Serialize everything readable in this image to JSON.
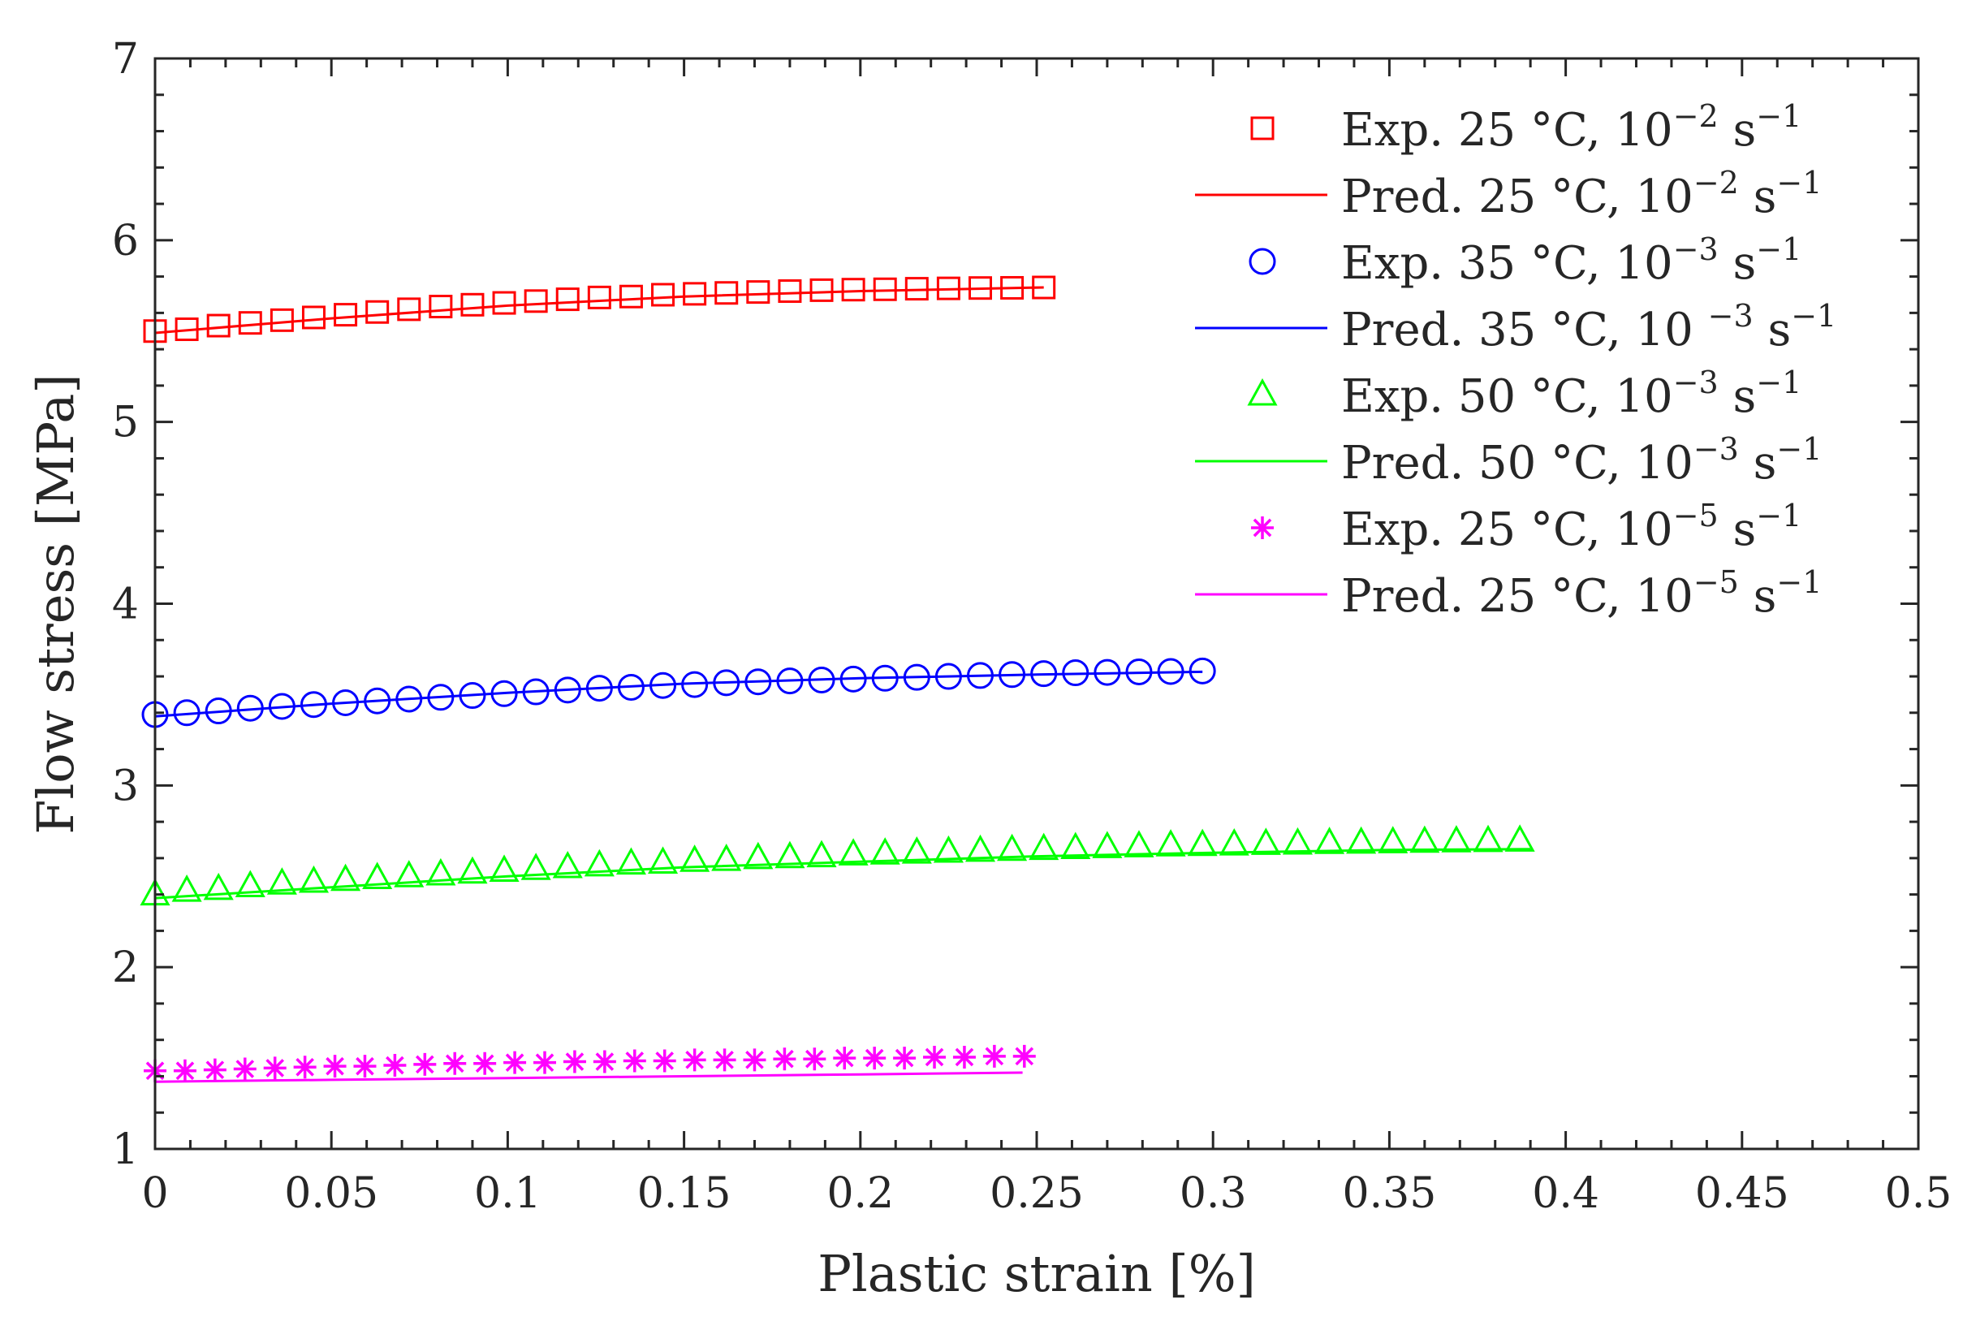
{
  "chart_data": {
    "type": "line",
    "title": "",
    "xlabel": "Plastic strain [%]",
    "ylabel": "Flow stress [MPa]",
    "xlim": [
      0,
      0.5
    ],
    "ylim": [
      1,
      7
    ],
    "grid": false,
    "legend_position": "top-right",
    "xticks": [
      0,
      0.05,
      0.1,
      0.15,
      0.2,
      0.25,
      0.3,
      0.35,
      0.4,
      0.45,
      0.5
    ],
    "xtick_labels": [
      "0",
      "0.05",
      "0.1",
      "0.15",
      "0.2",
      "0.25",
      "0.3",
      "0.35",
      "0.4",
      "0.45",
      "0.5"
    ],
    "yticks": [
      1,
      2,
      3,
      4,
      5,
      6,
      7
    ],
    "ytick_labels": [
      "1",
      "2",
      "3",
      "4",
      "5",
      "6",
      "7"
    ],
    "series": [
      {
        "name": "Exp. 25 °C, 10⁻² s⁻¹",
        "legend": {
          "prefix": "Exp.",
          "temp": "25 °C, 10",
          "exp": "−2",
          "unit": "s",
          "unit_exp": "−1"
        },
        "kind": "marker",
        "marker": "square",
        "color": "#ff0000",
        "x": [
          0,
          0.009,
          0.018,
          0.027,
          0.036,
          0.045,
          0.054,
          0.063,
          0.072,
          0.081,
          0.09,
          0.099,
          0.108,
          0.117,
          0.126,
          0.135,
          0.144,
          0.153,
          0.162,
          0.171,
          0.18,
          0.189,
          0.198,
          0.207,
          0.216,
          0.225,
          0.234,
          0.243,
          0.252
        ],
        "y": [
          5.5,
          5.51,
          5.53,
          5.545,
          5.56,
          5.575,
          5.59,
          5.605,
          5.62,
          5.635,
          5.645,
          5.655,
          5.665,
          5.675,
          5.685,
          5.69,
          5.7,
          5.705,
          5.71,
          5.715,
          5.72,
          5.725,
          5.728,
          5.73,
          5.733,
          5.735,
          5.737,
          5.738,
          5.74
        ]
      },
      {
        "name": "Pred. 25 °C, 10⁻² s⁻¹",
        "legend": {
          "prefix": "Pred.",
          "temp": "25 °C, 10",
          "exp": "−2",
          "unit": "s",
          "unit_exp": "−1"
        },
        "kind": "line",
        "color": "#ff0000",
        "x": [
          0,
          0.05,
          0.1,
          0.15,
          0.2,
          0.252
        ],
        "y": [
          5.49,
          5.57,
          5.64,
          5.69,
          5.72,
          5.74
        ]
      },
      {
        "name": "Exp. 35 °C, 10⁻³ s⁻¹",
        "legend": {
          "prefix": "Exp.",
          "temp": "35 °C, 10",
          "exp": "−3",
          "unit": "s",
          "unit_exp": "−1"
        },
        "kind": "marker",
        "marker": "circle",
        "color": "#0000ff",
        "x": [
          0,
          0.009,
          0.018,
          0.027,
          0.036,
          0.045,
          0.054,
          0.063,
          0.072,
          0.081,
          0.09,
          0.099,
          0.108,
          0.117,
          0.126,
          0.135,
          0.144,
          0.153,
          0.162,
          0.171,
          0.18,
          0.189,
          0.198,
          0.207,
          0.216,
          0.225,
          0.234,
          0.243,
          0.252,
          0.261,
          0.27,
          0.279,
          0.288,
          0.297
        ],
        "y": [
          3.39,
          3.4,
          3.41,
          3.425,
          3.435,
          3.445,
          3.455,
          3.465,
          3.475,
          3.485,
          3.495,
          3.505,
          3.515,
          3.525,
          3.535,
          3.54,
          3.55,
          3.555,
          3.565,
          3.57,
          3.575,
          3.58,
          3.585,
          3.59,
          3.595,
          3.6,
          3.605,
          3.61,
          3.615,
          3.62,
          3.622,
          3.625,
          3.627,
          3.63
        ]
      },
      {
        "name": "Pred. 35 °C, 10 ⁻³ s⁻¹",
        "legend": {
          "prefix": "Pred.",
          "temp": "35 °C, 10 ",
          "exp": "−3",
          "unit": "s",
          "unit_exp": "−1"
        },
        "kind": "line",
        "color": "#0000ff",
        "x": [
          0,
          0.05,
          0.1,
          0.15,
          0.2,
          0.25,
          0.297
        ],
        "y": [
          3.38,
          3.45,
          3.51,
          3.56,
          3.59,
          3.61,
          3.625
        ]
      },
      {
        "name": "Exp. 50 °C, 10⁻³ s⁻¹",
        "legend": {
          "prefix": "Exp.",
          "temp": "50 °C, 10",
          "exp": "−3",
          "unit": "s",
          "unit_exp": "−1"
        },
        "kind": "marker",
        "marker": "triangle",
        "color": "#00ff00",
        "x": [
          0,
          0.009,
          0.018,
          0.027,
          0.036,
          0.045,
          0.054,
          0.063,
          0.072,
          0.081,
          0.09,
          0.099,
          0.108,
          0.117,
          0.126,
          0.135,
          0.144,
          0.153,
          0.162,
          0.171,
          0.18,
          0.189,
          0.198,
          0.207,
          0.216,
          0.225,
          0.234,
          0.243,
          0.252,
          0.261,
          0.27,
          0.279,
          0.288,
          0.297,
          0.306,
          0.315,
          0.324,
          0.333,
          0.342,
          0.351,
          0.36,
          0.369,
          0.378,
          0.387
        ],
        "y": [
          2.4,
          2.42,
          2.43,
          2.445,
          2.46,
          2.47,
          2.48,
          2.49,
          2.5,
          2.51,
          2.52,
          2.53,
          2.54,
          2.55,
          2.56,
          2.57,
          2.575,
          2.585,
          2.59,
          2.6,
          2.605,
          2.61,
          2.62,
          2.625,
          2.63,
          2.635,
          2.64,
          2.645,
          2.65,
          2.655,
          2.66,
          2.665,
          2.67,
          2.672,
          2.675,
          2.678,
          2.68,
          2.683,
          2.685,
          2.687,
          2.69,
          2.692,
          2.694,
          2.696
        ]
      },
      {
        "name": "Pred. 50 °C, 10⁻³ s⁻¹",
        "legend": {
          "prefix": "Pred.",
          "temp": "50 °C, 10",
          "exp": "−3",
          "unit": "s",
          "unit_exp": "−1"
        },
        "kind": "line",
        "color": "#00ff00",
        "x": [
          0,
          0.05,
          0.1,
          0.15,
          0.2,
          0.25,
          0.3,
          0.35,
          0.39
        ],
        "y": [
          2.38,
          2.44,
          2.5,
          2.55,
          2.58,
          2.61,
          2.63,
          2.645,
          2.65
        ]
      },
      {
        "name": "Exp. 25 °C, 10⁻⁵ s⁻¹",
        "legend": {
          "prefix": "Exp.",
          "temp": "25 °C, 10",
          "exp": "−5",
          "unit": "s",
          "unit_exp": "−1"
        },
        "kind": "marker",
        "marker": "asterisk",
        "color": "#ff00ff",
        "x": [
          0,
          0.0085,
          0.017,
          0.0255,
          0.034,
          0.0425,
          0.051,
          0.0595,
          0.068,
          0.0765,
          0.085,
          0.0935,
          0.102,
          0.1105,
          0.119,
          0.1275,
          0.136,
          0.1445,
          0.153,
          0.1615,
          0.17,
          0.1785,
          0.187,
          0.1955,
          0.204,
          0.2125,
          0.221,
          0.2295,
          0.238,
          0.2465
        ],
        "y": [
          1.43,
          1.43,
          1.435,
          1.44,
          1.445,
          1.45,
          1.455,
          1.455,
          1.46,
          1.465,
          1.47,
          1.47,
          1.475,
          1.475,
          1.48,
          1.48,
          1.485,
          1.485,
          1.49,
          1.49,
          1.49,
          1.495,
          1.495,
          1.5,
          1.5,
          1.5,
          1.505,
          1.505,
          1.51,
          1.51
        ]
      },
      {
        "name": "Pred. 25 °C, 10⁻⁵ s⁻¹",
        "legend": {
          "prefix": "Pred.",
          "temp": "25 °C, 10",
          "exp": "−5",
          "unit": "s",
          "unit_exp": "−1"
        },
        "kind": "line",
        "color": "#ff00ff",
        "x": [
          0,
          0.05,
          0.1,
          0.15,
          0.2,
          0.246
        ],
        "y": [
          1.37,
          1.38,
          1.39,
          1.4,
          1.41,
          1.42
        ]
      }
    ]
  }
}
